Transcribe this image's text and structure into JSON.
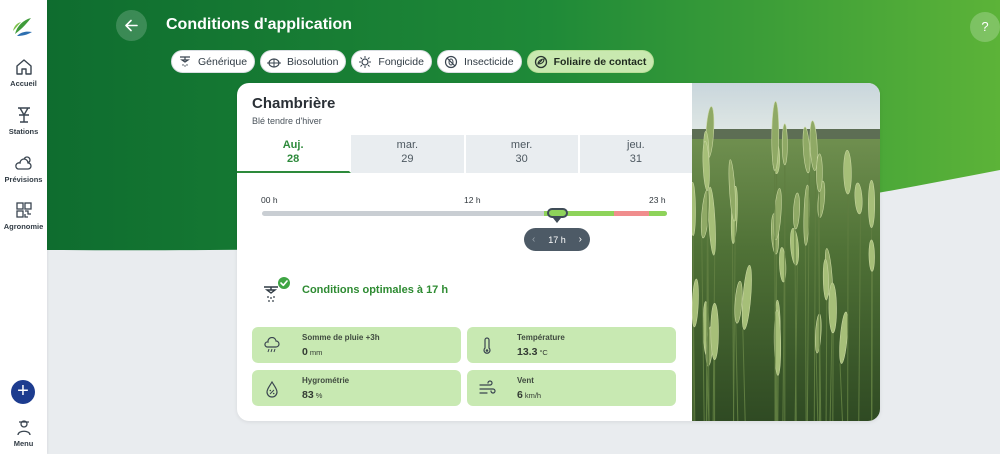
{
  "sidebar": {
    "items": [
      {
        "label": "Accueil",
        "icon": "home-icon"
      },
      {
        "label": "Stations",
        "icon": "station-icon"
      },
      {
        "label": "Prévisions",
        "icon": "weather-icon"
      },
      {
        "label": "Agronomie",
        "icon": "agronomy-icon"
      }
    ],
    "add_label": "+",
    "menu_label": "Menu"
  },
  "header": {
    "title": "Conditions d'application",
    "help_label": "?"
  },
  "chips": [
    {
      "label": "Générique",
      "icon": "sprayer-icon",
      "active": false
    },
    {
      "label": "Biosolution",
      "icon": "bug-icon",
      "active": false
    },
    {
      "label": "Fongicide",
      "icon": "fungus-icon",
      "active": false
    },
    {
      "label": "Insecticide",
      "icon": "insect-crossed-icon",
      "active": false
    },
    {
      "label": "Foliaire de contact",
      "icon": "leaf-contact-icon",
      "active": true
    }
  ],
  "field": {
    "name": "Chambrière",
    "crop": "Blé tendre d'hiver"
  },
  "days": [
    {
      "name": "Auj.",
      "num": "28",
      "active": true
    },
    {
      "name": "mar.",
      "num": "29",
      "active": false
    },
    {
      "name": "mer.",
      "num": "30",
      "active": false
    },
    {
      "name": "jeu.",
      "num": "31",
      "active": false
    }
  ],
  "timeline": {
    "start_label": "00 h",
    "mid_label": "12 h",
    "end_label": "23 h",
    "selected_hour": "17 h",
    "segments": [
      {
        "from_hour": 0,
        "to_hour": 16,
        "status": "unavailable",
        "color": "#c9ced3"
      },
      {
        "from_hour": 16,
        "to_hour": 20,
        "status": "optimal",
        "color": "#8ed35a"
      },
      {
        "from_hour": 20,
        "to_hour": 22,
        "status": "unfavorable",
        "color": "#f08d8d"
      },
      {
        "from_hour": 22,
        "to_hour": 23,
        "status": "optimal",
        "color": "#8ed35a"
      }
    ]
  },
  "conditions": {
    "text": "Conditions optimales à 17 h",
    "status_color": "#2e8b32"
  },
  "metrics": [
    {
      "label": "Somme de pluie +3h",
      "value": "0",
      "unit": "mm",
      "icon": "rain-cloud-icon"
    },
    {
      "label": "Température",
      "value": "13.3",
      "unit": "°C",
      "icon": "thermometer-icon"
    },
    {
      "label": "Hygrométrie",
      "value": "83",
      "unit": "%",
      "icon": "humidity-icon"
    },
    {
      "label": "Vent",
      "value": "6",
      "unit": "km/h",
      "icon": "wind-icon"
    }
  ],
  "colors": {
    "brand_green": "#1f7a34",
    "accent_green": "#2d8a3b",
    "metric_bg": "#c8e9b2",
    "add_button": "#1d3c8f"
  }
}
